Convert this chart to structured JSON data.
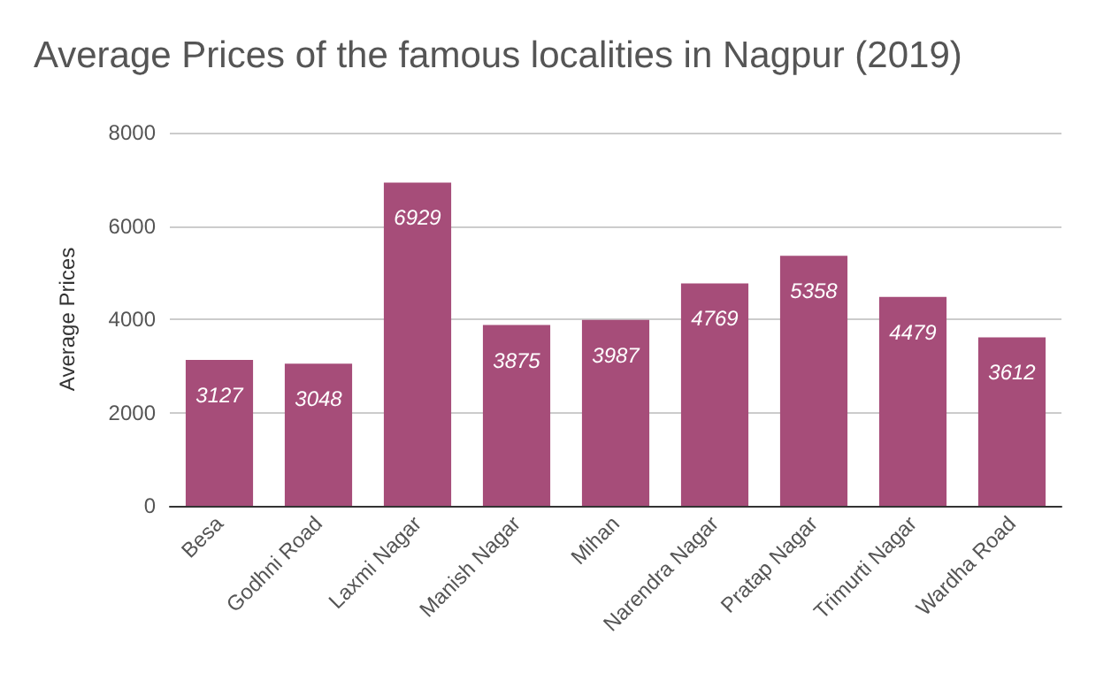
{
  "chart_data": {
    "type": "bar",
    "title": "Average Prices of the famous localities in Nagpur (2019)",
    "ylabel": "Average Prices",
    "categories": [
      "Besa",
      "Godhni Road",
      "Laxmi Nagar",
      "Manish Nagar",
      "Mihan",
      "Narendra Nagar",
      "Pratap Nagar",
      "Trimurti Nagar",
      "Wardha Road"
    ],
    "values": [
      3127,
      3048,
      6929,
      3875,
      3987,
      4769,
      5358,
      4479,
      3612
    ],
    "color": "#a64d79",
    "ylim": [
      0,
      8000
    ],
    "yticks": [
      0,
      2000,
      4000,
      6000,
      8000
    ],
    "grid": "y",
    "data_labels": true
  }
}
